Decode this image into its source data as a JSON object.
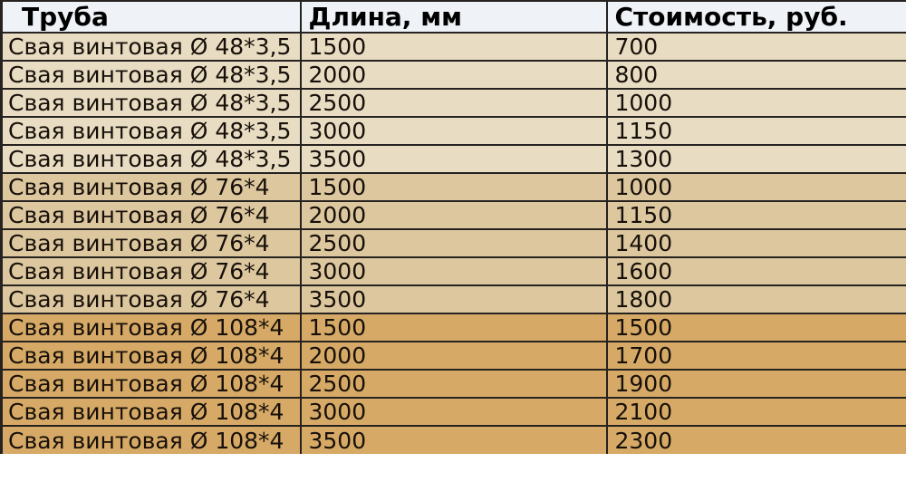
{
  "colors": {
    "header_bg": "#eff2f7",
    "group1_bg": "#e8dcc2",
    "group2_bg": "#dcc79f",
    "group3_bg": "#d6aa66",
    "border": "#262220",
    "text": "#17100a"
  },
  "table": {
    "header": {
      "pipe": "Труба",
      "length": "Длина, мм",
      "price": "Стоимость, руб."
    },
    "rows": [
      {
        "pipe": "Свая винтовая Ø 48*3,5",
        "length": "1500",
        "price": "700",
        "group": 1
      },
      {
        "pipe": "Свая винтовая Ø 48*3,5",
        "length": "2000",
        "price": "800",
        "group": 1
      },
      {
        "pipe": "Свая винтовая Ø 48*3,5",
        "length": "2500",
        "price": "1000",
        "group": 1
      },
      {
        "pipe": "Свая винтовая Ø 48*3,5",
        "length": "3000",
        "price": "1150",
        "group": 1
      },
      {
        "pipe": "Свая винтовая Ø 48*3,5",
        "length": "3500",
        "price": "1300",
        "group": 1
      },
      {
        "pipe": "Свая винтовая Ø 76*4",
        "length": "1500",
        "price": "1000",
        "group": 2
      },
      {
        "pipe": "Свая винтовая Ø 76*4",
        "length": "2000",
        "price": "1150",
        "group": 2
      },
      {
        "pipe": "Свая винтовая Ø 76*4",
        "length": "2500",
        "price": "1400",
        "group": 2
      },
      {
        "pipe": "Свая винтовая Ø 76*4",
        "length": "3000",
        "price": "1600",
        "group": 2
      },
      {
        "pipe": "Свая винтовая Ø 76*4",
        "length": "3500",
        "price": "1800",
        "group": 2
      },
      {
        "pipe": "Свая винтовая Ø 108*4",
        "length": "1500",
        "price": "1500",
        "group": 3
      },
      {
        "pipe": "Свая винтовая Ø 108*4",
        "length": "2000",
        "price": "1700",
        "group": 3
      },
      {
        "pipe": "Свая винтовая Ø 108*4",
        "length": "2500",
        "price": "1900",
        "group": 3
      },
      {
        "pipe": "Свая винтовая Ø 108*4",
        "length": "3000",
        "price": "2100",
        "group": 3
      },
      {
        "pipe": "Свая винтовая Ø 108*4",
        "length": "3500",
        "price": "2300",
        "group": 3
      }
    ]
  }
}
